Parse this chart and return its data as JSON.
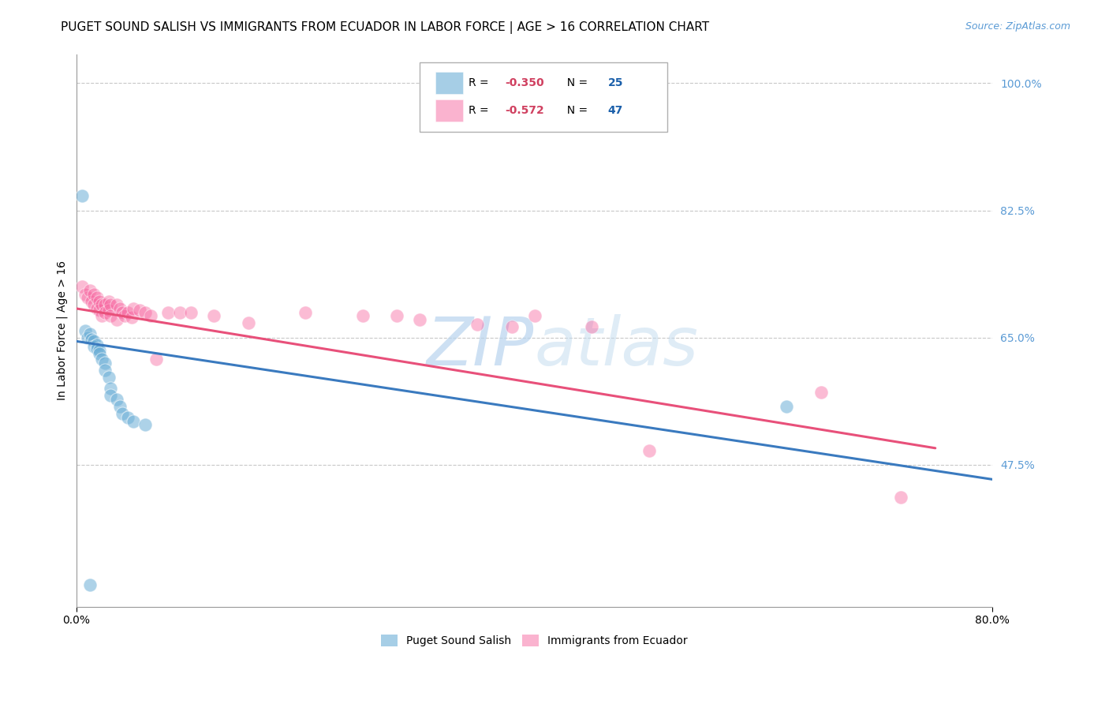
{
  "title": "PUGET SOUND SALISH VS IMMIGRANTS FROM ECUADOR IN LABOR FORCE | AGE > 16 CORRELATION CHART",
  "source": "Source: ZipAtlas.com",
  "ylabel": "In Labor Force | Age > 16",
  "xlim": [
    0.0,
    0.8
  ],
  "ylim": [
    0.28,
    1.04
  ],
  "ytick_positions": [
    0.475,
    0.65,
    0.825,
    1.0
  ],
  "ytick_labels": [
    "47.5%",
    "65.0%",
    "82.5%",
    "100.0%"
  ],
  "xtick_positions": [
    0.0,
    0.8
  ],
  "xtick_labels": [
    "0.0%",
    "80.0%"
  ],
  "blue_color": "#6baed6",
  "pink_color": "#f768a1",
  "blue_line_color": "#3a7abf",
  "pink_line_color": "#e8507a",
  "blue_R": -0.35,
  "blue_N": 25,
  "pink_R": -0.572,
  "pink_N": 47,
  "blue_scatter_x": [
    0.005,
    0.008,
    0.01,
    0.012,
    0.013,
    0.015,
    0.015,
    0.018,
    0.018,
    0.02,
    0.02,
    0.022,
    0.025,
    0.025,
    0.028,
    0.03,
    0.03,
    0.035,
    0.038,
    0.04,
    0.045,
    0.05,
    0.06,
    0.62,
    0.012
  ],
  "blue_scatter_y": [
    0.845,
    0.66,
    0.65,
    0.655,
    0.648,
    0.645,
    0.638,
    0.64,
    0.635,
    0.632,
    0.628,
    0.62,
    0.615,
    0.605,
    0.595,
    0.58,
    0.57,
    0.565,
    0.555,
    0.545,
    0.54,
    0.535,
    0.53,
    0.555,
    0.31
  ],
  "pink_scatter_x": [
    0.005,
    0.008,
    0.01,
    0.012,
    0.013,
    0.015,
    0.015,
    0.018,
    0.018,
    0.02,
    0.02,
    0.022,
    0.022,
    0.025,
    0.025,
    0.028,
    0.028,
    0.03,
    0.03,
    0.035,
    0.035,
    0.038,
    0.04,
    0.042,
    0.045,
    0.048,
    0.05,
    0.055,
    0.06,
    0.065,
    0.07,
    0.08,
    0.09,
    0.1,
    0.12,
    0.15,
    0.2,
    0.25,
    0.28,
    0.3,
    0.35,
    0.38,
    0.4,
    0.45,
    0.5,
    0.65,
    0.72
  ],
  "pink_scatter_y": [
    0.72,
    0.71,
    0.705,
    0.715,
    0.7,
    0.71,
    0.695,
    0.705,
    0.69,
    0.7,
    0.688,
    0.695,
    0.68,
    0.695,
    0.685,
    0.7,
    0.688,
    0.695,
    0.68,
    0.695,
    0.675,
    0.69,
    0.685,
    0.68,
    0.685,
    0.678,
    0.69,
    0.688,
    0.685,
    0.68,
    0.62,
    0.685,
    0.685,
    0.685,
    0.68,
    0.67,
    0.685,
    0.68,
    0.68,
    0.675,
    0.668,
    0.665,
    0.68,
    0.665,
    0.495,
    0.575,
    0.43
  ],
  "blue_line_x": [
    0.0,
    0.8
  ],
  "blue_line_y": [
    0.645,
    0.455
  ],
  "pink_line_x": [
    0.0,
    0.75
  ],
  "pink_line_y": [
    0.69,
    0.498
  ],
  "watermark_zip": "ZIP",
  "watermark_atlas": "atlas",
  "bg_color": "#ffffff",
  "grid_color": "#c8c8c8",
  "title_fontsize": 11,
  "source_fontsize": 9,
  "axis_label_fontsize": 10,
  "tick_fontsize": 10
}
